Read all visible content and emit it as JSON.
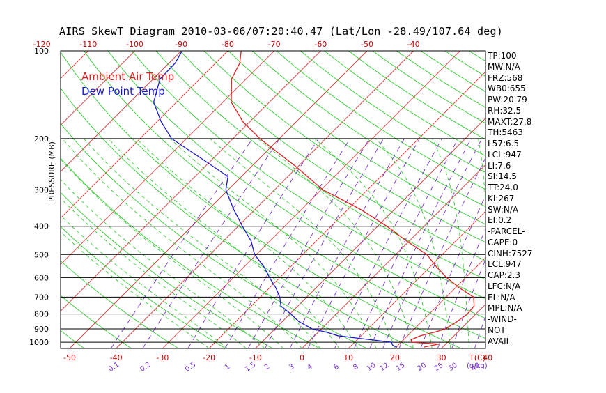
{
  "header": {
    "title": "AIRS SkewT Diagram 2010-03-06/07:20:40.47 (Lat/Lon -28.49/107.64 deg)",
    "ylabel": "PRESSURE (MB)"
  },
  "legend": {
    "ambient": "Ambient Air Temp",
    "dewpoint": "Dew Point Temp"
  },
  "colors": {
    "ambient": "#dd2222",
    "dewpoint": "#1a1acc",
    "isotherm": "#dd3333",
    "dry_adiabat": "#33cc33",
    "moist_adiabat": "#33cc33",
    "mixing_ratio": "#7733cc",
    "isobar": "#000000"
  },
  "stats": [
    "TP:100",
    "MW:N/A",
    "FRZ:568",
    "WB0:655",
    "PW:20.79",
    "RH:32.5",
    "MAXT:27.8",
    "TH:5463",
    "L57:6.5",
    "LCL:947",
    "LI:7.6",
    "SI:14.5",
    "TT:24.0",
    "KI:267",
    "SW:N/A",
    "EI:0.2",
    "-PARCEL-",
    "CAPE:0",
    "CINH:7527",
    "LCL:947",
    "CAP:2.3",
    "LFC:N/A",
    "EL:N/A",
    "MPL:N/A",
    "-WIND-",
    "NOT",
    "AVAIL"
  ],
  "chart_data": {
    "type": "line",
    "title": "AIRS SkewT Diagram 2010-03-06/07:20:40.47 (Lat/Lon -28.49/107.64 deg)",
    "ylabel": "PRESSURE (MB)",
    "xlabel": "T(C)",
    "y_scale": "log",
    "ylim": [
      1050,
      100
    ],
    "xlim_bottom": [
      -50,
      40
    ],
    "top_temperature_ticks": [
      -120,
      -110,
      -100,
      -90,
      -80,
      -70,
      -60,
      -50,
      -40
    ],
    "bottom_temperature_ticks": [
      -50,
      -40,
      -30,
      -20,
      -10,
      0,
      10,
      20,
      30,
      40
    ],
    "pressure_ticks": [
      100,
      200,
      300,
      400,
      500,
      600,
      700,
      800,
      900,
      1000
    ],
    "mixing_ratio_labels": [
      "0.1",
      "0.2",
      "0.5",
      "1",
      "1.5",
      "2",
      "3",
      "4",
      "6",
      "8",
      "10",
      "12",
      "15",
      "20",
      "25",
      "30",
      "40"
    ],
    "mixing_ratio_unit": "(g/kg)",
    "series": [
      {
        "name": "Ambient Air Temp",
        "points": [
          [
            1040,
            25.9
          ],
          [
            1015,
            28.5
          ],
          [
            1000,
            22.3
          ],
          [
            980,
            21.6
          ],
          [
            950,
            22.8
          ],
          [
            925,
            24.9
          ],
          [
            900,
            26.7
          ],
          [
            850,
            27.6
          ],
          [
            800,
            28.2
          ],
          [
            750,
            27.9
          ],
          [
            700,
            25.9
          ],
          [
            650,
            20.8
          ],
          [
            600,
            15.9
          ],
          [
            550,
            11.3
          ],
          [
            500,
            6.7
          ],
          [
            450,
            -0.5
          ],
          [
            400,
            -8.0
          ],
          [
            350,
            -17.3
          ],
          [
            300,
            -29.6
          ],
          [
            250,
            -40.3
          ],
          [
            200,
            -54.2
          ],
          [
            175,
            -61.5
          ],
          [
            150,
            -68.2
          ],
          [
            125,
            -73.1
          ],
          [
            110,
            -74.8
          ],
          [
            100,
            -77.1
          ]
        ]
      },
      {
        "name": "Dew Point Temp",
        "points": [
          [
            1040,
            20.2
          ],
          [
            1025,
            18.9
          ],
          [
            1000,
            17.9
          ],
          [
            975,
            11.5
          ],
          [
            950,
            5.0
          ],
          [
            925,
            2.0
          ],
          [
            900,
            -2.0
          ],
          [
            850,
            -6.4
          ],
          [
            800,
            -9.8
          ],
          [
            750,
            -13.7
          ],
          [
            700,
            -15.8
          ],
          [
            650,
            -18.7
          ],
          [
            600,
            -22.2
          ],
          [
            550,
            -25.8
          ],
          [
            500,
            -30.4
          ],
          [
            450,
            -34.0
          ],
          [
            400,
            -39.1
          ],
          [
            350,
            -44.6
          ],
          [
            300,
            -50.5
          ],
          [
            270,
            -52.9
          ],
          [
            240,
            -60.8
          ],
          [
            200,
            -73.2
          ],
          [
            175,
            -79.1
          ],
          [
            150,
            -84.9
          ],
          [
            125,
            -88.5
          ],
          [
            110,
            -88.7
          ],
          [
            100,
            -89.8
          ]
        ]
      }
    ]
  }
}
